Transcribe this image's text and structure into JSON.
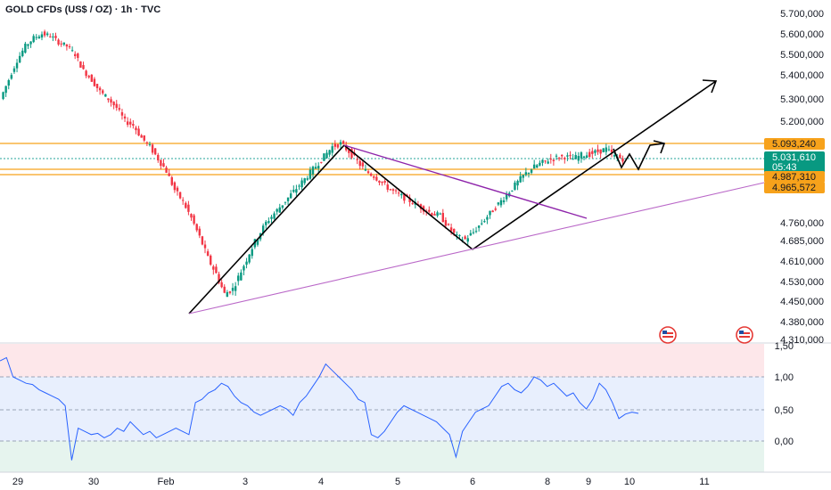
{
  "chart_data": {
    "type": "candlestick",
    "title": "GOLD CFDs (US$ / OZ) · 1h · TVC",
    "timeframe": "1h",
    "price_axis": {
      "ticks": [
        "5.700,000",
        "5.600,000",
        "5.500,000",
        "5.400,000",
        "5.300,000",
        "5.200,000",
        "4.760,000",
        "4.685,000",
        "4.610,000",
        "4.530,000",
        "4.450,000",
        "4.380,000",
        "4.310,000"
      ]
    },
    "x_axis": {
      "ticks": [
        "29",
        "30",
        "Feb",
        "3",
        "4",
        "5",
        "6",
        "8",
        "9",
        "10",
        "11"
      ]
    },
    "levels": [
      {
        "label": "5.093,240",
        "price": 5093.24,
        "color": "#f7a21b"
      },
      {
        "label": "5.031,610",
        "price": 5031.61,
        "color": "#26a69a",
        "countdown": "05:43"
      },
      {
        "label": "4.987,310",
        "price": 4987.31,
        "color": "#f7a21b"
      },
      {
        "label": "4.965,572",
        "price": 4965.572,
        "color": "#f7a21b"
      }
    ],
    "price_series": [
      5300,
      5380,
      5470,
      5540,
      5580,
      5600,
      5590,
      5560,
      5540,
      5500,
      5420,
      5380,
      5330,
      5300,
      5260,
      5200,
      5180,
      5120,
      5080,
      5030,
      4980,
      4900,
      4850,
      4780,
      4700,
      4620,
      4560,
      4480,
      4500,
      4570,
      4640,
      4700,
      4760,
      4800,
      4840,
      4880,
      4920,
      4960,
      5000,
      5040,
      5080,
      5093,
      5060,
      5020,
      4980,
      4960,
      4930,
      4900,
      4880,
      4860,
      4840,
      4820,
      4800,
      4790,
      4740,
      4700,
      4690,
      4720,
      4760,
      4800,
      4840,
      4880,
      4920,
      4960,
      4990,
      5010,
      5025,
      5035,
      5040,
      5030,
      5045,
      5050,
      5060,
      5070,
      5040,
      5031
    ],
    "oscillator": {
      "ticks": [
        "1,50",
        "1,00",
        "0,50",
        "0,00"
      ],
      "ylim": [
        -0.5,
        1.5
      ],
      "values": [
        1.25,
        1.3,
        1.0,
        0.95,
        0.9,
        0.88,
        0.8,
        0.75,
        0.7,
        0.65,
        0.55,
        -0.3,
        0.2,
        0.15,
        0.1,
        0.12,
        0.05,
        0.1,
        0.2,
        0.15,
        0.3,
        0.2,
        0.1,
        0.15,
        0.05,
        0.1,
        0.15,
        0.2,
        0.15,
        0.1,
        0.6,
        0.65,
        0.75,
        0.8,
        0.9,
        0.85,
        0.7,
        0.6,
        0.55,
        0.45,
        0.4,
        0.45,
        0.5,
        0.55,
        0.5,
        0.4,
        0.6,
        0.7,
        0.85,
        1.0,
        1.2,
        1.1,
        1.0,
        0.9,
        0.8,
        0.65,
        0.6,
        0.1,
        0.05,
        0.15,
        0.3,
        0.45,
        0.55,
        0.5,
        0.45,
        0.4,
        0.35,
        0.3,
        0.2,
        0.1,
        -0.25,
        0.15,
        0.3,
        0.45,
        0.5,
        0.55,
        0.7,
        0.85,
        0.9,
        0.8,
        0.75,
        0.85,
        1.0,
        0.95,
        0.85,
        0.9,
        0.8,
        0.7,
        0.75,
        0.6,
        0.5,
        0.65,
        0.9,
        0.8,
        0.6,
        0.35,
        0.42,
        0.45,
        0.43
      ]
    }
  }
}
